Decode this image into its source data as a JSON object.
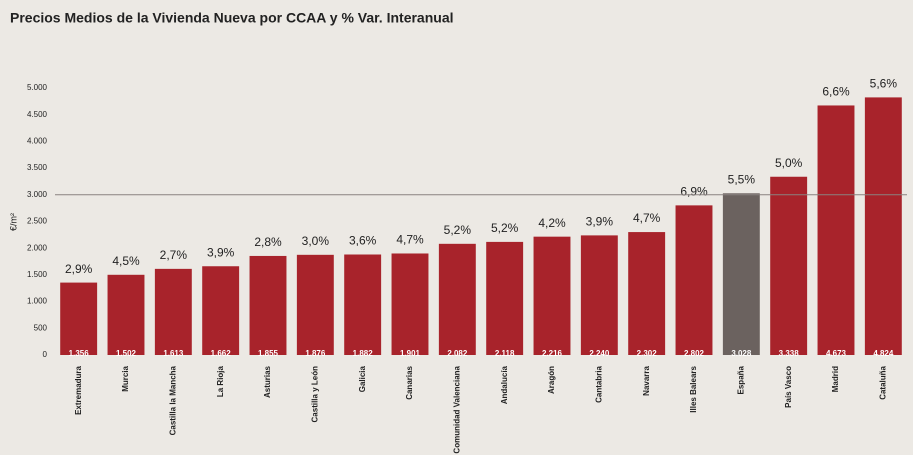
{
  "chart_data": {
    "type": "bar",
    "title": "Precios Medios de la Vivienda Nueva por CCAA y % Var. Interanual",
    "y_label": "€/m²",
    "categories": [
      "Extremadura",
      "Murcia",
      "Castilla la Mancha",
      "La Rioja",
      "Asturias",
      "Castilla y León",
      "Galicia",
      "Canarias",
      "Comunidad Valenciana",
      "Andalucía",
      "Aragón",
      "Cantabria",
      "Navarra",
      "Illes Balears",
      "España",
      "País Vasco",
      "Madrid",
      "Cataluña"
    ],
    "values": [
      1356,
      1502,
      1613,
      1662,
      1855,
      1876,
      1882,
      1901,
      2082,
      2118,
      2216,
      2240,
      2302,
      2802,
      3028,
      3338,
      4673,
      4824
    ],
    "value_labels": [
      "1.356",
      "1.502",
      "1.613",
      "1.662",
      "1.855",
      "1.876",
      "1.882",
      "1.901",
      "2.082",
      "2.118",
      "2.216",
      "2.240",
      "2.302",
      "2.802",
      "3.028",
      "3.338",
      "4.673",
      "4.824"
    ],
    "colors": [
      "#a8232b",
      "#a8232b",
      "#a8232b",
      "#a8232b",
      "#a8232b",
      "#a8232b",
      "#a8232b",
      "#a8232b",
      "#a8232b",
      "#a8232b",
      "#a8232b",
      "#a8232b",
      "#a8232b",
      "#a8232b",
      "#6b625f",
      "#a8232b",
      "#a8232b",
      "#a8232b"
    ],
    "changes": {
      "values": [
        2.9,
        4.5,
        2.7,
        3.9,
        2.8,
        3.0,
        3.6,
        4.7,
        5.2,
        5.2,
        4.2,
        3.9,
        4.7,
        6.9,
        5.5,
        5.0,
        6.6,
        5.6
      ],
      "value_labels": [
        "2,9%",
        "4,5%",
        "2,7%",
        "3,9%",
        "2,8%",
        "3,0%",
        "3,6%",
        "4,7%",
        "5,2%",
        "5,2%",
        "4,2%",
        "3,9%",
        "4,7%",
        "6,9%",
        "5,5%",
        "5,0%",
        "6,6%",
        "5,6%"
      ]
    },
    "reference_line": 3000,
    "ylim": [
      0,
      5000
    ],
    "yticks": [
      0,
      500,
      {
        "value": 1000,
        "label": "1.000"
      },
      {
        "value": 1500,
        "label": "1.500"
      },
      {
        "value": 2000,
        "label": "2.000"
      },
      {
        "value": 2500,
        "label": "2.500"
      },
      {
        "value": 3000,
        "label": "3.000"
      },
      {
        "value": 3500,
        "label": "3.500"
      },
      {
        "value": 4000,
        "label": "4.000"
      },
      {
        "value": 4500,
        "label": "4.500"
      },
      {
        "value": 5000,
        "label": "5.000"
      }
    ],
    "grid": false
  }
}
